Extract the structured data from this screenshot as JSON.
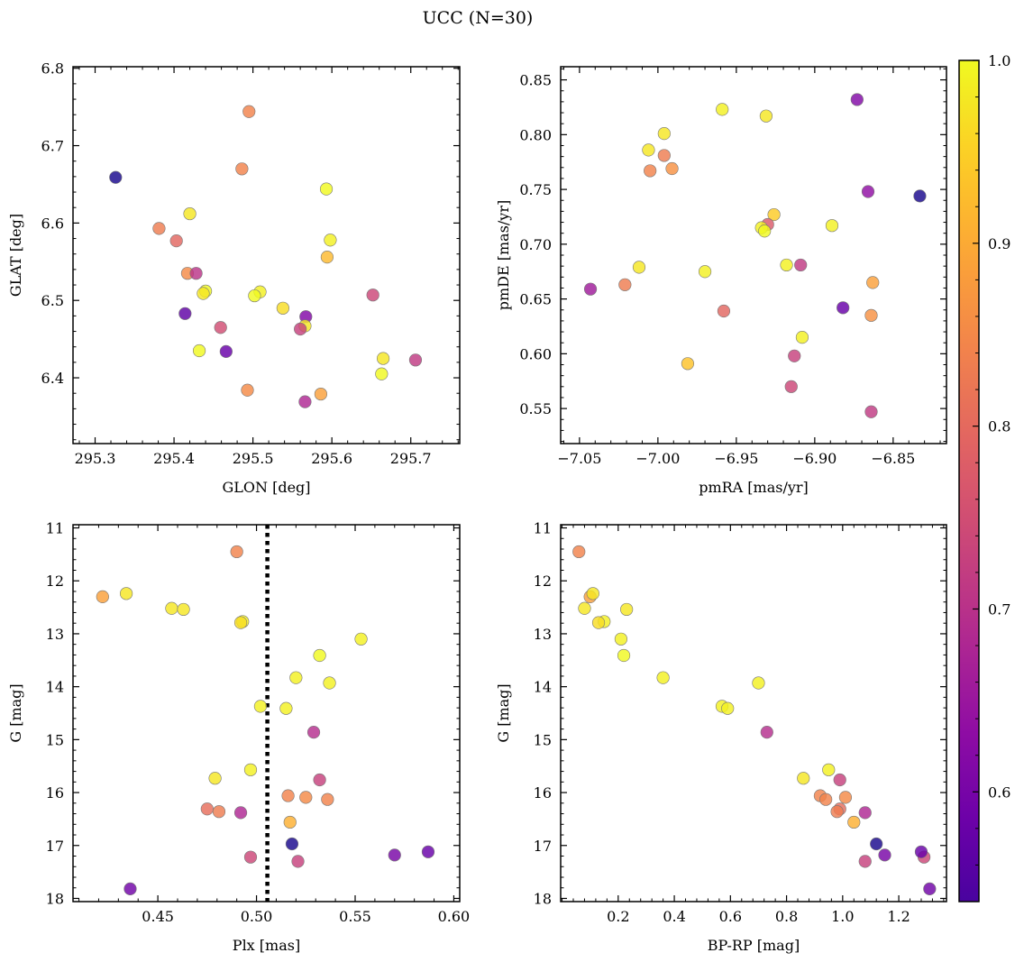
{
  "figure": {
    "title": "UCC (N=30)"
  },
  "colorbar": {
    "colormap": "plasma",
    "min": 0.54,
    "max": 1.0,
    "ticks": [
      0.6,
      0.7,
      0.8,
      0.9,
      1.0
    ],
    "tick_labels": [
      "0.6",
      "0.7",
      "0.8",
      "0.9",
      "1.0"
    ]
  },
  "chart_data": [
    {
      "type": "scatter",
      "xlabel": "GLON [deg]",
      "ylabel": "GLAT [deg]",
      "xlim": [
        295.272,
        295.762
      ],
      "ylim": [
        6.315,
        6.802
      ],
      "y_inverted": false,
      "xticks": [
        295.3,
        295.4,
        295.5,
        295.6,
        295.7
      ],
      "xtick_labels": [
        "295.3",
        "295.4",
        "295.5",
        "295.6",
        "295.7"
      ],
      "yticks": [
        6.4,
        6.5,
        6.6,
        6.7,
        6.8
      ],
      "ytick_labels": [
        "6.4",
        "6.5",
        "6.6",
        "6.7",
        "6.8"
      ],
      "points": [
        {
          "x": 295.326,
          "y": 6.659,
          "c": 0.55
        },
        {
          "x": 295.495,
          "y": 6.744,
          "c": 0.86
        },
        {
          "x": 295.486,
          "y": 6.67,
          "c": 0.86
        },
        {
          "x": 295.593,
          "y": 6.644,
          "c": 1.0
        },
        {
          "x": 295.42,
          "y": 6.612,
          "c": 0.98
        },
        {
          "x": 295.381,
          "y": 6.593,
          "c": 0.85
        },
        {
          "x": 295.403,
          "y": 6.577,
          "c": 0.82
        },
        {
          "x": 295.598,
          "y": 6.578,
          "c": 0.99
        },
        {
          "x": 295.594,
          "y": 6.556,
          "c": 0.93
        },
        {
          "x": 295.417,
          "y": 6.535,
          "c": 0.87
        },
        {
          "x": 295.428,
          "y": 6.535,
          "c": 0.74
        },
        {
          "x": 295.44,
          "y": 6.512,
          "c": 1.0
        },
        {
          "x": 295.437,
          "y": 6.509,
          "c": 0.98
        },
        {
          "x": 295.509,
          "y": 6.511,
          "c": 0.99
        },
        {
          "x": 295.502,
          "y": 6.506,
          "c": 1.0
        },
        {
          "x": 295.652,
          "y": 6.507,
          "c": 0.77
        },
        {
          "x": 295.538,
          "y": 6.49,
          "c": 0.97
        },
        {
          "x": 295.414,
          "y": 6.483,
          "c": 0.62
        },
        {
          "x": 295.567,
          "y": 6.479,
          "c": 0.66
        },
        {
          "x": 295.566,
          "y": 6.467,
          "c": 0.98
        },
        {
          "x": 295.56,
          "y": 6.463,
          "c": 0.76
        },
        {
          "x": 295.459,
          "y": 6.465,
          "c": 0.78
        },
        {
          "x": 295.432,
          "y": 6.435,
          "c": 1.0
        },
        {
          "x": 295.466,
          "y": 6.434,
          "c": 0.63
        },
        {
          "x": 295.665,
          "y": 6.425,
          "c": 0.98
        },
        {
          "x": 295.706,
          "y": 6.423,
          "c": 0.75
        },
        {
          "x": 295.663,
          "y": 6.405,
          "c": 1.0
        },
        {
          "x": 295.493,
          "y": 6.384,
          "c": 0.87
        },
        {
          "x": 295.586,
          "y": 6.379,
          "c": 0.9
        },
        {
          "x": 295.566,
          "y": 6.369,
          "c": 0.72
        }
      ]
    },
    {
      "type": "scatter",
      "xlabel": "pmRA [mas/yr]",
      "ylabel": "pmDE [mas/yr]",
      "xlim": [
        -7.062,
        -6.816
      ],
      "ylim": [
        0.518,
        0.862
      ],
      "y_inverted": false,
      "xticks": [
        -7.05,
        -7.0,
        -6.95,
        -6.9,
        -6.85
      ],
      "xtick_labels": [
        "−7.05",
        "−7.00",
        "−6.95",
        "−6.90",
        "−6.85"
      ],
      "yticks": [
        0.55,
        0.6,
        0.65,
        0.7,
        0.75,
        0.8,
        0.85
      ],
      "ytick_labels": [
        "0.55",
        "0.60",
        "0.65",
        "0.70",
        "0.75",
        "0.80",
        "0.85"
      ],
      "points": [
        {
          "x": -6.873,
          "y": 0.832,
          "c": 0.66
        },
        {
          "x": -6.959,
          "y": 0.823,
          "c": 0.99
        },
        {
          "x": -6.931,
          "y": 0.817,
          "c": 0.98
        },
        {
          "x": -6.996,
          "y": 0.801,
          "c": 0.98
        },
        {
          "x": -7.006,
          "y": 0.786,
          "c": 0.98
        },
        {
          "x": -6.996,
          "y": 0.781,
          "c": 0.85
        },
        {
          "x": -7.005,
          "y": 0.767,
          "c": 0.86
        },
        {
          "x": -6.991,
          "y": 0.769,
          "c": 0.88
        },
        {
          "x": -6.866,
          "y": 0.748,
          "c": 0.68
        },
        {
          "x": -6.833,
          "y": 0.744,
          "c": 0.55
        },
        {
          "x": -6.926,
          "y": 0.727,
          "c": 0.95
        },
        {
          "x": -6.93,
          "y": 0.718,
          "c": 0.8
        },
        {
          "x": -6.934,
          "y": 0.715,
          "c": 0.99
        },
        {
          "x": -6.932,
          "y": 0.712,
          "c": 1.0
        },
        {
          "x": -6.889,
          "y": 0.717,
          "c": 0.99
        },
        {
          "x": -7.012,
          "y": 0.679,
          "c": 0.98
        },
        {
          "x": -6.918,
          "y": 0.681,
          "c": 0.99
        },
        {
          "x": -6.909,
          "y": 0.681,
          "c": 0.75
        },
        {
          "x": -6.97,
          "y": 0.675,
          "c": 0.99
        },
        {
          "x": -6.863,
          "y": 0.665,
          "c": 0.9
        },
        {
          "x": -7.021,
          "y": 0.663,
          "c": 0.85
        },
        {
          "x": -7.043,
          "y": 0.659,
          "c": 0.7
        },
        {
          "x": -6.882,
          "y": 0.642,
          "c": 0.63
        },
        {
          "x": -6.958,
          "y": 0.639,
          "c": 0.82
        },
        {
          "x": -6.864,
          "y": 0.635,
          "c": 0.88
        },
        {
          "x": -6.908,
          "y": 0.615,
          "c": 0.99
        },
        {
          "x": -6.913,
          "y": 0.598,
          "c": 0.76
        },
        {
          "x": -6.981,
          "y": 0.591,
          "c": 0.94
        },
        {
          "x": -6.915,
          "y": 0.57,
          "c": 0.77
        },
        {
          "x": -6.864,
          "y": 0.547,
          "c": 0.75
        }
      ]
    },
    {
      "type": "scatter",
      "xlabel": "Plx [mas]",
      "ylabel": "G [mag]",
      "xlim": [
        0.407,
        0.603
      ],
      "ylim": [
        18.06,
        10.94
      ],
      "y_inverted": true,
      "xticks": [
        0.45,
        0.5,
        0.55,
        0.6
      ],
      "xtick_labels": [
        "0.45",
        "0.50",
        "0.55",
        "0.60"
      ],
      "yticks": [
        11,
        12,
        13,
        14,
        15,
        16,
        17,
        18
      ],
      "ytick_labels": [
        "11",
        "12",
        "13",
        "14",
        "15",
        "16",
        "17",
        "18"
      ],
      "vline": {
        "x": 0.5055,
        "style": "dotted"
      },
      "points": [
        {
          "x": 0.49,
          "y": 11.45,
          "c": 0.86
        },
        {
          "x": 0.422,
          "y": 12.3,
          "c": 0.9
        },
        {
          "x": 0.434,
          "y": 12.24,
          "c": 0.98
        },
        {
          "x": 0.457,
          "y": 12.52,
          "c": 0.98
        },
        {
          "x": 0.463,
          "y": 12.54,
          "c": 0.98
        },
        {
          "x": 0.493,
          "y": 12.77,
          "c": 0.99
        },
        {
          "x": 0.492,
          "y": 12.79,
          "c": 0.97
        },
        {
          "x": 0.553,
          "y": 13.1,
          "c": 0.99
        },
        {
          "x": 0.532,
          "y": 13.41,
          "c": 1.0
        },
        {
          "x": 0.52,
          "y": 13.83,
          "c": 0.99
        },
        {
          "x": 0.537,
          "y": 13.93,
          "c": 0.99
        },
        {
          "x": 0.502,
          "y": 14.37,
          "c": 0.99
        },
        {
          "x": 0.515,
          "y": 14.41,
          "c": 0.99
        },
        {
          "x": 0.529,
          "y": 14.86,
          "c": 0.73
        },
        {
          "x": 0.497,
          "y": 15.57,
          "c": 0.99
        },
        {
          "x": 0.479,
          "y": 15.73,
          "c": 0.98
        },
        {
          "x": 0.532,
          "y": 15.76,
          "c": 0.76
        },
        {
          "x": 0.516,
          "y": 16.06,
          "c": 0.86
        },
        {
          "x": 0.525,
          "y": 16.09,
          "c": 0.87
        },
        {
          "x": 0.536,
          "y": 16.13,
          "c": 0.86
        },
        {
          "x": 0.475,
          "y": 16.31,
          "c": 0.83
        },
        {
          "x": 0.481,
          "y": 16.36,
          "c": 0.85
        },
        {
          "x": 0.492,
          "y": 16.38,
          "c": 0.72
        },
        {
          "x": 0.517,
          "y": 16.56,
          "c": 0.92
        },
        {
          "x": 0.518,
          "y": 16.97,
          "c": 0.55
        },
        {
          "x": 0.497,
          "y": 17.22,
          "c": 0.77
        },
        {
          "x": 0.521,
          "y": 17.3,
          "c": 0.76
        },
        {
          "x": 0.57,
          "y": 17.18,
          "c": 0.65
        },
        {
          "x": 0.587,
          "y": 17.12,
          "c": 0.63
        },
        {
          "x": 0.436,
          "y": 17.82,
          "c": 0.64
        }
      ]
    },
    {
      "type": "scatter",
      "xlabel": "BP-RP [mag]",
      "ylabel": "G [mag]",
      "xlim": [
        -0.005,
        1.37
      ],
      "ylim": [
        18.06,
        10.94
      ],
      "y_inverted": true,
      "xticks": [
        0.2,
        0.4,
        0.6,
        0.8,
        1.0,
        1.2
      ],
      "xtick_labels": [
        "0.2",
        "0.4",
        "0.6",
        "0.8",
        "1.0",
        "1.2"
      ],
      "yticks": [
        11,
        12,
        13,
        14,
        15,
        16,
        17,
        18
      ],
      "ytick_labels": [
        "11",
        "12",
        "13",
        "14",
        "15",
        "16",
        "17",
        "18"
      ],
      "points": [
        {
          "x": 0.06,
          "y": 11.45,
          "c": 0.86
        },
        {
          "x": 0.1,
          "y": 12.3,
          "c": 0.9
        },
        {
          "x": 0.11,
          "y": 12.24,
          "c": 0.98
        },
        {
          "x": 0.08,
          "y": 12.52,
          "c": 0.98
        },
        {
          "x": 0.23,
          "y": 12.54,
          "c": 0.98
        },
        {
          "x": 0.15,
          "y": 12.77,
          "c": 0.99
        },
        {
          "x": 0.13,
          "y": 12.79,
          "c": 0.97
        },
        {
          "x": 0.21,
          "y": 13.1,
          "c": 0.99
        },
        {
          "x": 0.22,
          "y": 13.41,
          "c": 1.0
        },
        {
          "x": 0.36,
          "y": 13.83,
          "c": 0.99
        },
        {
          "x": 0.7,
          "y": 13.93,
          "c": 0.99
        },
        {
          "x": 0.57,
          "y": 14.37,
          "c": 0.99
        },
        {
          "x": 0.59,
          "y": 14.41,
          "c": 0.99
        },
        {
          "x": 0.73,
          "y": 14.86,
          "c": 0.73
        },
        {
          "x": 0.95,
          "y": 15.57,
          "c": 0.99
        },
        {
          "x": 0.86,
          "y": 15.73,
          "c": 0.98
        },
        {
          "x": 0.99,
          "y": 15.76,
          "c": 0.76
        },
        {
          "x": 0.92,
          "y": 16.06,
          "c": 0.86
        },
        {
          "x": 1.01,
          "y": 16.09,
          "c": 0.87
        },
        {
          "x": 0.94,
          "y": 16.13,
          "c": 0.86
        },
        {
          "x": 0.99,
          "y": 16.31,
          "c": 0.83
        },
        {
          "x": 0.98,
          "y": 16.36,
          "c": 0.85
        },
        {
          "x": 1.08,
          "y": 16.38,
          "c": 0.72
        },
        {
          "x": 1.04,
          "y": 16.56,
          "c": 0.92
        },
        {
          "x": 1.12,
          "y": 16.97,
          "c": 0.55
        },
        {
          "x": 1.15,
          "y": 17.18,
          "c": 0.65
        },
        {
          "x": 1.08,
          "y": 17.3,
          "c": 0.76
        },
        {
          "x": 1.29,
          "y": 17.22,
          "c": 0.77
        },
        {
          "x": 1.28,
          "y": 17.12,
          "c": 0.63
        },
        {
          "x": 1.31,
          "y": 17.82,
          "c": 0.64
        }
      ]
    }
  ]
}
